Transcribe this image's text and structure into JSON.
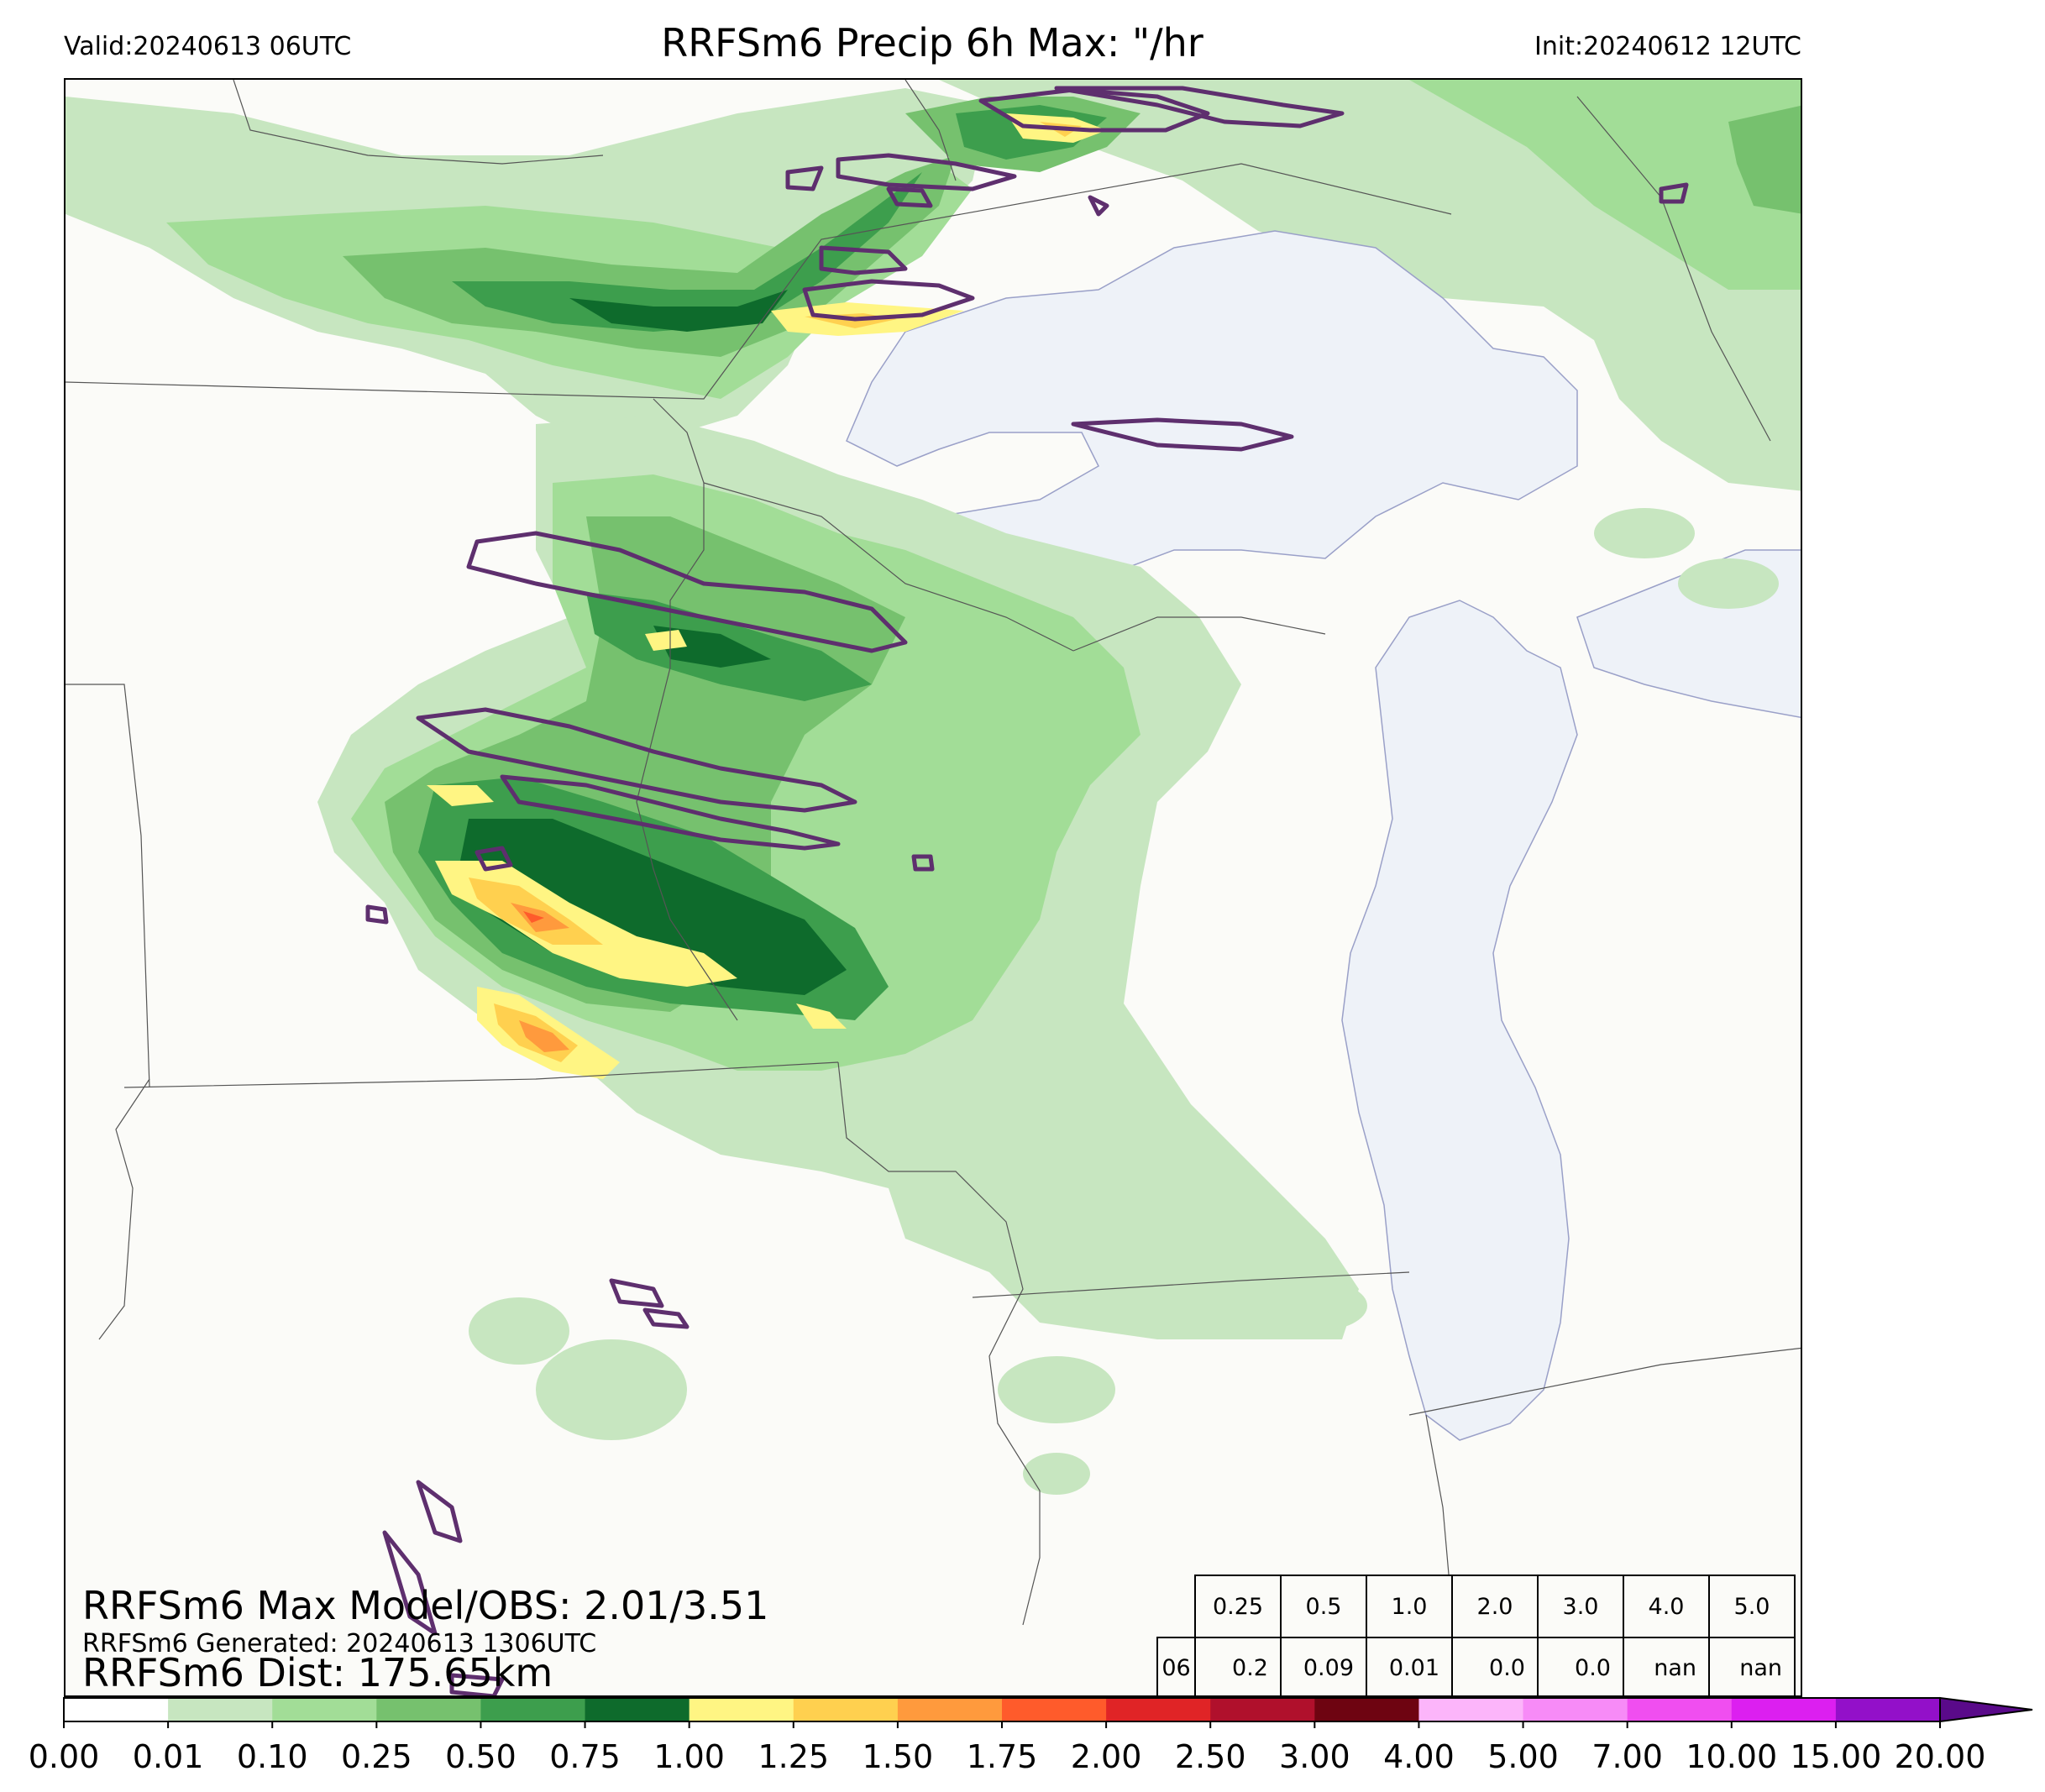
{
  "header": {
    "valid": "Valid:20240613 06UTC",
    "title": "RRFSm6 Precip 6h Max: \"/hr",
    "init": "Init:20240612 12UTC"
  },
  "annotations": {
    "max_model_obs": "RRFSm6 Max Model/OBS: 2.01/3.51",
    "generated": "RRFSm6 Generated: 20240613 1306UTC",
    "dist": "RRFSm6 Dist: 175.65km"
  },
  "stats_table": {
    "thresholds": [
      "0.25",
      "0.5",
      "1.0",
      "2.0",
      "3.0",
      "4.0",
      "5.0"
    ],
    "row_label": "06",
    "values": [
      "0.2",
      "0.09",
      "0.01",
      "0.0",
      "0.0",
      "nan",
      "nan"
    ]
  },
  "colorbar": {
    "ticks": [
      "0.00",
      "0.01",
      "0.10",
      "0.25",
      "0.50",
      "0.75",
      "1.00",
      "1.25",
      "1.50",
      "1.75",
      "2.00",
      "2.50",
      "3.00",
      "4.00",
      "5.00",
      "7.00",
      "10.00",
      "15.00",
      "20.00"
    ],
    "colors": [
      "#ffffff",
      "#c7e6c0",
      "#a2dd97",
      "#76c16e",
      "#3d9e4d",
      "#0e6b2c",
      "#fff583",
      "#ffd04f",
      "#ff9a3d",
      "#ff5b2b",
      "#e02426",
      "#b0102c",
      "#6e0411",
      "#fcb5fa",
      "#f78bf7",
      "#f04ef0",
      "#dc1ff0",
      "#9310c9"
    ],
    "extend_color": "#5a0a8a"
  },
  "map_colors": {
    "background": "#fbfbf8",
    "water": "#eef2f8",
    "observed_contour": "#5e2f6e",
    "borders": "#555555"
  }
}
